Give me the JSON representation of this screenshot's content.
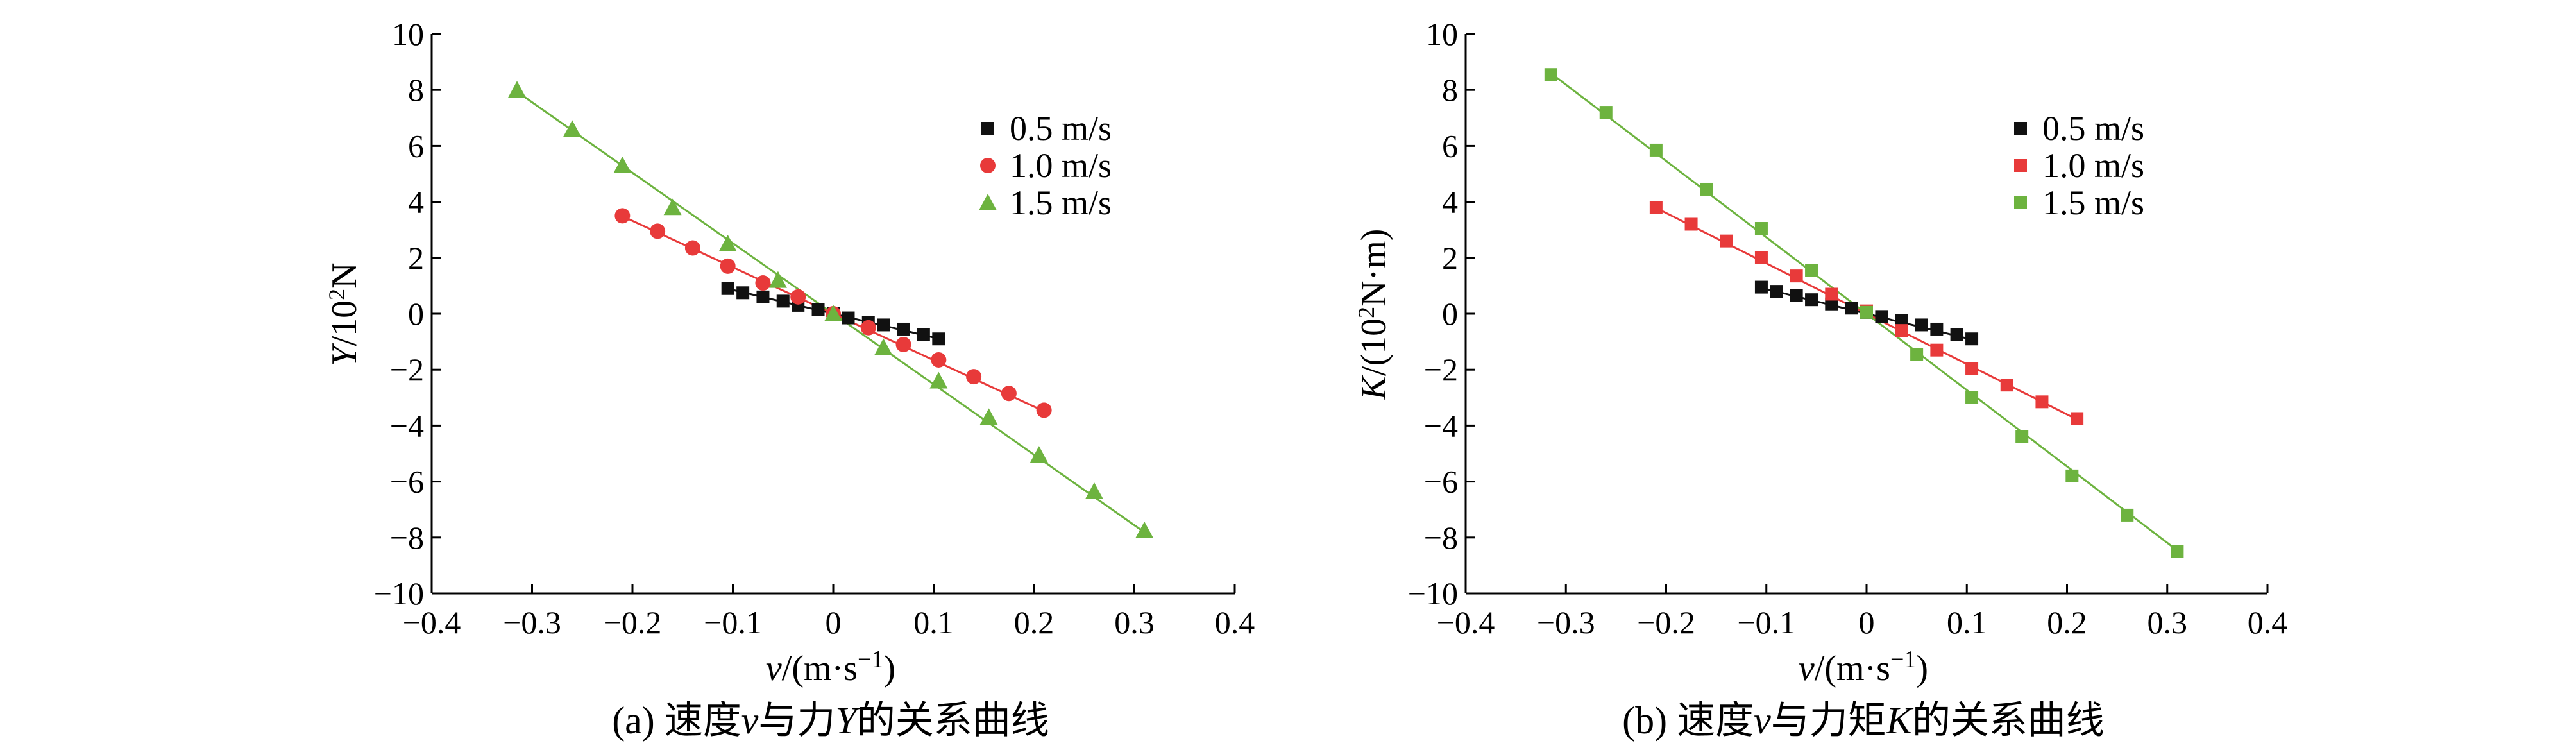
{
  "colors": {
    "s05": "#111111",
    "s10": "#e83a3a",
    "s15": "#6db33f"
  },
  "chart_data": [
    {
      "type": "scatter",
      "id": "a",
      "caption": {
        "prefix": "(a) 速度",
        "var1": "v",
        "mid": "与力",
        "var2": "Y",
        "suffix": "的关系曲线"
      },
      "ylabel": {
        "var": "Y",
        "rest": "/10",
        "sup": "2",
        "unit": "N"
      },
      "xlabel": {
        "var": "v",
        "rest": "/(m·s",
        "sup": "−1",
        "close": ")"
      },
      "xlim": [
        -0.4,
        0.4
      ],
      "ylim": [
        -10,
        10
      ],
      "xticks": [
        -0.4,
        -0.3,
        -0.2,
        -0.1,
        0,
        0.1,
        0.2,
        0.3,
        0.4
      ],
      "xtick_labels": [
        "−0.4",
        "−0.3",
        "−0.2",
        "−0.1",
        "0",
        "0.1",
        "0.2",
        "0.3",
        "0.4"
      ],
      "yticks": [
        -10,
        -8,
        -6,
        -4,
        -2,
        0,
        2,
        4,
        6,
        8,
        10
      ],
      "ytick_labels": [
        "−10",
        "−8",
        "−6",
        "−4",
        "−2",
        "0",
        "2",
        "4",
        "6",
        "8",
        "10"
      ],
      "legend_position": "top-right",
      "series": [
        {
          "name": "0.5 m/s",
          "marker": "square",
          "color": "#111111",
          "x": [
            -0.105,
            -0.09,
            -0.07,
            -0.05,
            -0.035,
            -0.015,
            0,
            0.015,
            0.035,
            0.05,
            0.07,
            0.09,
            0.105
          ],
          "y": [
            0.9,
            0.75,
            0.6,
            0.45,
            0.3,
            0.15,
            0,
            -0.15,
            -0.3,
            -0.4,
            -0.55,
            -0.75,
            -0.9
          ],
          "fit": {
            "slope": -8.5,
            "x0": -0.105,
            "x1": 0.105
          }
        },
        {
          "name": "1.0 m/s",
          "marker": "circle",
          "color": "#e83a3a",
          "x": [
            -0.21,
            -0.175,
            -0.14,
            -0.105,
            -0.07,
            -0.035,
            0,
            0.035,
            0.07,
            0.105,
            0.14,
            0.175,
            0.21
          ],
          "y": [
            3.5,
            2.95,
            2.35,
            1.7,
            1.1,
            0.6,
            0,
            -0.5,
            -1.1,
            -1.65,
            -2.25,
            -2.85,
            -3.45
          ],
          "fit": {
            "slope": -16.6,
            "x0": -0.21,
            "x1": 0.21
          }
        },
        {
          "name": "1.5 m/s",
          "marker": "triangle",
          "color": "#6db33f",
          "x": [
            -0.315,
            -0.26,
            -0.21,
            -0.16,
            -0.105,
            -0.055,
            0,
            0.05,
            0.105,
            0.155,
            0.205,
            0.26,
            0.31
          ],
          "y": [
            8.0,
            6.6,
            5.3,
            3.8,
            2.5,
            1.2,
            0,
            -1.2,
            -2.4,
            -3.7,
            -5.05,
            -6.35,
            -7.75
          ],
          "fit": {
            "slope": -25.2,
            "x0": -0.315,
            "x1": 0.31
          }
        }
      ]
    },
    {
      "type": "scatter",
      "id": "b",
      "caption": {
        "prefix": "(b) 速度",
        "var1": "v",
        "mid": "与力矩",
        "var2": "K",
        "suffix": "的关系曲线"
      },
      "ylabel": {
        "var": "K",
        "rest": "/(10",
        "sup": "2",
        "unit": "N·m)"
      },
      "xlabel": {
        "var": "v",
        "rest": "/(m·s",
        "sup": "−1",
        "close": ")"
      },
      "xlim": [
        -0.4,
        0.4
      ],
      "ylim": [
        -10,
        10
      ],
      "xticks": [
        -0.4,
        -0.3,
        -0.2,
        -0.1,
        0,
        0.1,
        0.2,
        0.3,
        0.4
      ],
      "xtick_labels": [
        "−0.4",
        "−0.3",
        "−0.2",
        "−0.1",
        "0",
        "0.1",
        "0.2",
        "0.3",
        "0.4"
      ],
      "yticks": [
        -10,
        -8,
        -6,
        -4,
        -2,
        0,
        2,
        4,
        6,
        8,
        10
      ],
      "ytick_labels": [
        "−10",
        "−8",
        "−6",
        "−4",
        "−2",
        "0",
        "2",
        "4",
        "6",
        "8",
        "10"
      ],
      "legend_position": "top-right",
      "series": [
        {
          "name": "0.5 m/s",
          "marker": "square",
          "color": "#111111",
          "x": [
            -0.105,
            -0.09,
            -0.07,
            -0.055,
            -0.035,
            -0.015,
            0,
            0.015,
            0.035,
            0.055,
            0.07,
            0.09,
            0.105
          ],
          "y": [
            0.95,
            0.8,
            0.65,
            0.5,
            0.35,
            0.2,
            0.05,
            -0.1,
            -0.25,
            -0.4,
            -0.55,
            -0.75,
            -0.9
          ],
          "fit": {
            "slope": -8.8,
            "x0": -0.105,
            "x1": 0.105
          }
        },
        {
          "name": "1.0 m/s",
          "marker": "square",
          "color": "#e83a3a",
          "x": [
            -0.21,
            -0.175,
            -0.14,
            -0.105,
            -0.07,
            -0.035,
            0,
            0.035,
            0.07,
            0.105,
            0.14,
            0.175,
            0.21
          ],
          "y": [
            3.8,
            3.2,
            2.6,
            2.0,
            1.35,
            0.7,
            0.1,
            -0.6,
            -1.3,
            -1.95,
            -2.55,
            -3.15,
            -3.75
          ],
          "fit": {
            "slope": -18.0,
            "x0": -0.21,
            "x1": 0.21
          }
        },
        {
          "name": "1.5 m/s",
          "marker": "square",
          "color": "#6db33f",
          "x": [
            -0.315,
            -0.26,
            -0.21,
            -0.16,
            -0.105,
            -0.055,
            0,
            0.05,
            0.105,
            0.155,
            0.205,
            0.26,
            0.31
          ],
          "y": [
            8.55,
            7.2,
            5.85,
            4.45,
            3.05,
            1.55,
            0.05,
            -1.45,
            -3.0,
            -4.4,
            -5.8,
            -7.2,
            -8.5
          ],
          "fit": {
            "slope": -27.3,
            "x0": -0.315,
            "x1": 0.31
          }
        }
      ]
    }
  ]
}
